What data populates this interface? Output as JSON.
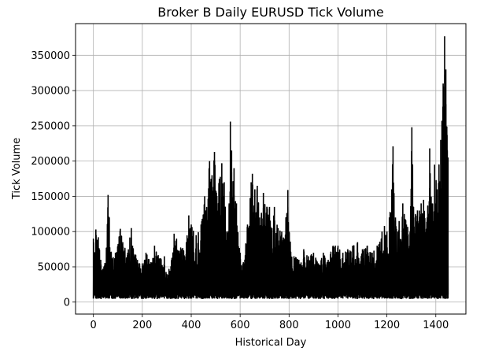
{
  "chart_data": {
    "type": "line",
    "title": "Broker B Daily EURUSD Tick Volume",
    "xlabel": "Historical Day",
    "ylabel": "Tick Volume",
    "xlim": [
      -73,
      1523
    ],
    "ylim": [
      -17000,
      395000
    ],
    "x_ticks": [
      0,
      200,
      400,
      600,
      800,
      1000,
      1200,
      1400
    ],
    "y_ticks": [
      0,
      50000,
      100000,
      150000,
      200000,
      250000,
      300000,
      350000
    ],
    "grid": true,
    "legend": "none",
    "line_color": "#000000",
    "grid_color": "#b0b0b0",
    "x_range": [
      0,
      1450
    ],
    "baseline": 5000,
    "envelope": [
      [
        0,
        90000
      ],
      [
        10,
        103000
      ],
      [
        20,
        92000
      ],
      [
        30,
        60000
      ],
      [
        50,
        55000
      ],
      [
        60,
        152000
      ],
      [
        65,
        120000
      ],
      [
        75,
        62000
      ],
      [
        90,
        70000
      ],
      [
        110,
        104000
      ],
      [
        120,
        85000
      ],
      [
        140,
        70000
      ],
      [
        155,
        105000
      ],
      [
        160,
        80000
      ],
      [
        180,
        60000
      ],
      [
        200,
        55000
      ],
      [
        215,
        70000
      ],
      [
        240,
        55000
      ],
      [
        250,
        80000
      ],
      [
        270,
        62000
      ],
      [
        290,
        65000
      ],
      [
        300,
        40000
      ],
      [
        320,
        60000
      ],
      [
        330,
        97000
      ],
      [
        340,
        90000
      ],
      [
        360,
        75000
      ],
      [
        380,
        85000
      ],
      [
        390,
        123000
      ],
      [
        400,
        110000
      ],
      [
        420,
        95000
      ],
      [
        440,
        110000
      ],
      [
        455,
        150000
      ],
      [
        460,
        130000
      ],
      [
        475,
        200000
      ],
      [
        485,
        180000
      ],
      [
        495,
        213000
      ],
      [
        505,
        150000
      ],
      [
        515,
        175000
      ],
      [
        525,
        197000
      ],
      [
        535,
        170000
      ],
      [
        545,
        100000
      ],
      [
        555,
        140000
      ],
      [
        560,
        256000
      ],
      [
        565,
        215000
      ],
      [
        575,
        190000
      ],
      [
        585,
        140000
      ],
      [
        600,
        70000
      ],
      [
        615,
        55000
      ],
      [
        630,
        110000
      ],
      [
        645,
        170000
      ],
      [
        650,
        182000
      ],
      [
        660,
        160000
      ],
      [
        670,
        165000
      ],
      [
        680,
        120000
      ],
      [
        695,
        155000
      ],
      [
        710,
        135000
      ],
      [
        720,
        135000
      ],
      [
        730,
        105000
      ],
      [
        740,
        135000
      ],
      [
        755,
        105000
      ],
      [
        770,
        100000
      ],
      [
        780,
        90000
      ],
      [
        795,
        159000
      ],
      [
        800,
        100000
      ],
      [
        820,
        65000
      ],
      [
        840,
        60000
      ],
      [
        860,
        75000
      ],
      [
        880,
        65000
      ],
      [
        900,
        70000
      ],
      [
        920,
        55000
      ],
      [
        940,
        70000
      ],
      [
        960,
        60000
      ],
      [
        980,
        80000
      ],
      [
        1000,
        80000
      ],
      [
        1020,
        70000
      ],
      [
        1040,
        75000
      ],
      [
        1060,
        80000
      ],
      [
        1080,
        85000
      ],
      [
        1100,
        75000
      ],
      [
        1120,
        80000
      ],
      [
        1140,
        70000
      ],
      [
        1160,
        80000
      ],
      [
        1180,
        100000
      ],
      [
        1190,
        108000
      ],
      [
        1200,
        100000
      ],
      [
        1210,
        120000
      ],
      [
        1220,
        160000
      ],
      [
        1225,
        221000
      ],
      [
        1235,
        120000
      ],
      [
        1250,
        115000
      ],
      [
        1265,
        140000
      ],
      [
        1280,
        110000
      ],
      [
        1295,
        100000
      ],
      [
        1302,
        248000
      ],
      [
        1310,
        120000
      ],
      [
        1325,
        130000
      ],
      [
        1340,
        140000
      ],
      [
        1350,
        145000
      ],
      [
        1365,
        120000
      ],
      [
        1375,
        218000
      ],
      [
        1382,
        140000
      ],
      [
        1395,
        195000
      ],
      [
        1405,
        160000
      ],
      [
        1420,
        230000
      ],
      [
        1430,
        310000
      ],
      [
        1436,
        377000
      ],
      [
        1441,
        330000
      ],
      [
        1446,
        237000
      ],
      [
        1450,
        205000
      ]
    ]
  }
}
